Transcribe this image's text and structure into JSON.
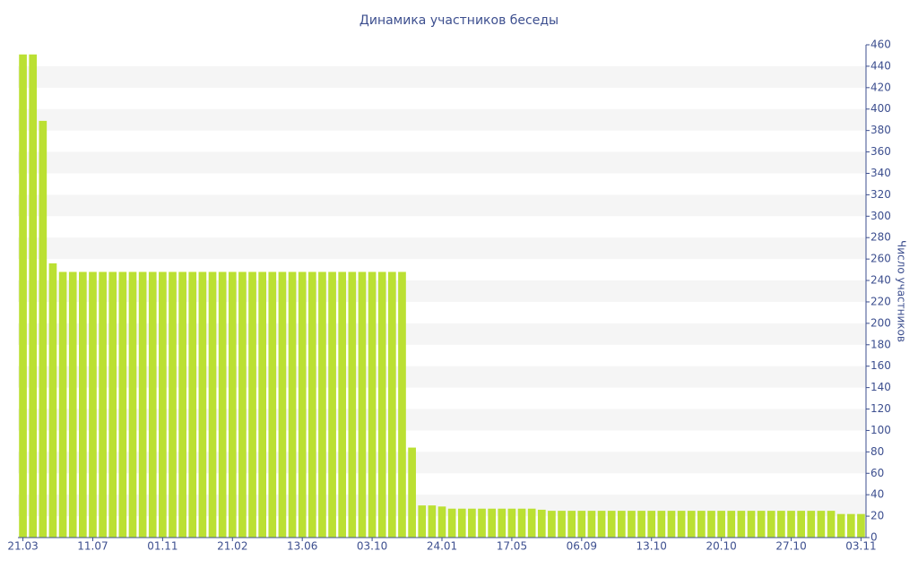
{
  "chart_data": {
    "type": "bar",
    "title": "Динамика участников беседы",
    "y_label": "Число участников",
    "categories": [
      "21.03",
      null,
      null,
      null,
      null,
      null,
      null,
      "11.07",
      null,
      null,
      null,
      null,
      null,
      null,
      "01.11",
      null,
      null,
      null,
      null,
      null,
      null,
      "21.02",
      null,
      null,
      null,
      null,
      null,
      null,
      "13.06",
      null,
      null,
      null,
      null,
      null,
      null,
      "03.10",
      null,
      null,
      null,
      null,
      null,
      null,
      "24.01",
      null,
      null,
      null,
      null,
      null,
      null,
      "17.05",
      null,
      null,
      null,
      null,
      null,
      null,
      "06.09",
      null,
      null,
      null,
      null,
      null,
      null,
      "13.10",
      null,
      null,
      null,
      null,
      null,
      null,
      "20.10",
      null,
      null,
      null,
      null,
      null,
      null,
      "27.10",
      null,
      null,
      null,
      null,
      null,
      null,
      "03.11"
    ],
    "values": [
      451,
      451,
      389,
      256,
      248,
      248,
      248,
      248,
      248,
      248,
      248,
      248,
      248,
      248,
      248,
      248,
      248,
      248,
      248,
      248,
      248,
      248,
      248,
      248,
      248,
      248,
      248,
      248,
      248,
      248,
      248,
      248,
      248,
      248,
      248,
      248,
      248,
      248,
      248,
      84,
      30,
      30,
      29,
      27,
      27,
      27,
      27,
      27,
      27,
      27,
      27,
      27,
      26,
      25,
      25,
      25,
      25,
      25,
      25,
      25,
      25,
      25,
      25,
      25,
      25,
      25,
      25,
      25,
      25,
      25,
      25,
      25,
      25,
      25,
      25,
      25,
      25,
      25,
      25,
      25,
      25,
      25,
      22,
      22,
      22
    ],
    "color": "#bbe033",
    "ylim": [
      0,
      460
    ],
    "yticks": [
      0,
      20,
      40,
      60,
      80,
      100,
      120,
      140,
      160,
      180,
      200,
      220,
      240,
      260,
      280,
      300,
      320,
      340,
      360,
      380,
      400,
      420,
      440,
      460
    ],
    "grid": "bands",
    "y_axis_side": "right"
  }
}
